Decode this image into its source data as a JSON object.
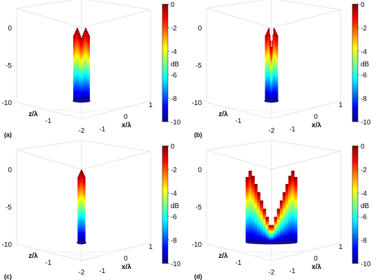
{
  "chart_data": [
    {
      "type": "surface",
      "panel_label": "(a)",
      "zlabel": "",
      "xlabel": "x/λ",
      "ylabel": "z/λ",
      "x_ticks": [
        "-1",
        "0",
        "1"
      ],
      "y_ticks": [
        "-2",
        "-1"
      ],
      "z_ticks": [
        "-10",
        "-5",
        "0"
      ],
      "zlim": [
        -10,
        0
      ],
      "colorbar": {
        "label": "dB",
        "ticks": [
          "0",
          "-2",
          "-4",
          "-6",
          "-8",
          "-10"
        ],
        "range": [
          -10,
          0
        ]
      },
      "peaks": [
        {
          "x": -0.05,
          "z_db": 0
        },
        {
          "x": 0.05,
          "z_db": 0
        }
      ],
      "dip_db": -1.5
    },
    {
      "type": "surface",
      "panel_label": "(b)",
      "xlabel": "x/λ",
      "ylabel": "z/λ",
      "x_ticks": [
        "-1",
        "0",
        "1"
      ],
      "y_ticks": [
        "-2",
        "-1"
      ],
      "z_ticks": [
        "-10",
        "-5",
        "0"
      ],
      "zlim": [
        -10,
        0
      ],
      "colorbar": {
        "label": "dB",
        "ticks": [
          "0",
          "-2",
          "-4",
          "-6",
          "-8",
          "-10"
        ],
        "range": [
          -10,
          0
        ]
      },
      "peaks": [
        {
          "x": -0.03,
          "z_db": 0
        },
        {
          "x": 0.03,
          "z_db": 0
        }
      ],
      "dip_db": -3
    },
    {
      "type": "surface",
      "panel_label": "(c)",
      "xlabel": "x/λ",
      "ylabel": "z/λ",
      "x_ticks": [
        "-1",
        "0",
        "1"
      ],
      "y_ticks": [
        "-2",
        "-1"
      ],
      "z_ticks": [
        "-10",
        "-5",
        "0"
      ],
      "zlim": [
        -10,
        0
      ],
      "colorbar": {
        "label": "dB",
        "ticks": [
          "0",
          "-2",
          "-4",
          "-6",
          "-8",
          "-10"
        ],
        "range": [
          -10,
          0
        ]
      },
      "peaks": [
        {
          "x": 0,
          "z_db": 0
        }
      ],
      "dip_db": 0
    },
    {
      "type": "surface",
      "panel_label": "(d)",
      "xlabel": "x/λ",
      "ylabel": "z/λ",
      "x_ticks": [
        "-1",
        "0",
        "1"
      ],
      "y_ticks": [
        "-2",
        "-1"
      ],
      "z_ticks": [
        "-10",
        "-5",
        "0"
      ],
      "zlim": [
        -10,
        0
      ],
      "colorbar": {
        "label": "dB",
        "ticks": [
          "0",
          "-2",
          "-4",
          "-6",
          "-8",
          "-10"
        ],
        "range": [
          -10,
          0
        ]
      },
      "peaks": [
        {
          "x": -0.25,
          "z_db": 0
        },
        {
          "x": 0.25,
          "z_db": 0
        }
      ],
      "dip_db": -8
    }
  ]
}
